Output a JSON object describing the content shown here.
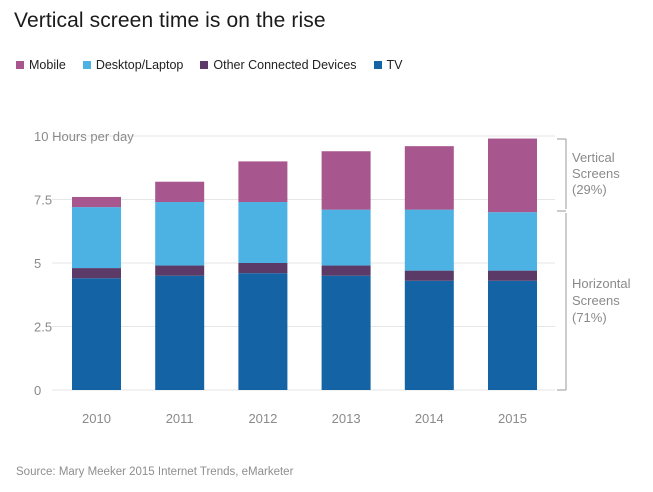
{
  "title": "Vertical screen time is on the rise",
  "source": "Source: Mary Meeker 2015 Internet Trends, eMarketer",
  "legend": [
    {
      "label": "Mobile",
      "color": "#a8578e"
    },
    {
      "label": "Desktop/Laptop",
      "color": "#4bb2e3"
    },
    {
      "label": "Other Connected Devices",
      "color": "#5b3a68"
    },
    {
      "label": "TV",
      "color": "#1464a5"
    }
  ],
  "annotations": {
    "vertical": [
      "Vertical",
      "Screens",
      "(29%)"
    ],
    "horizontal": [
      "Horizontal",
      "Screens",
      "(71%)"
    ]
  },
  "chart_data": {
    "type": "bar",
    "stacked": true,
    "title": "Vertical screen time is on the rise",
    "ylabel": "Hours per day",
    "ylim": [
      0,
      10
    ],
    "yticks": [
      {
        "value": 0,
        "label": "0"
      },
      {
        "value": 2.5,
        "label": "2.5"
      },
      {
        "value": 5,
        "label": "5"
      },
      {
        "value": 7.5,
        "label": "7.5"
      },
      {
        "value": 10,
        "label": "10 Hours per day"
      }
    ],
    "categories": [
      "2010",
      "2011",
      "2012",
      "2013",
      "2014",
      "2015"
    ],
    "series": [
      {
        "name": "TV",
        "color": "#1464a5",
        "values": [
          4.4,
          4.5,
          4.6,
          4.5,
          4.3,
          4.3
        ]
      },
      {
        "name": "Other Connected Devices",
        "color": "#5b3a68",
        "values": [
          0.4,
          0.4,
          0.4,
          0.4,
          0.4,
          0.4
        ]
      },
      {
        "name": "Desktop/Laptop",
        "color": "#4bb2e3",
        "values": [
          2.4,
          2.5,
          2.4,
          2.2,
          2.4,
          2.3
        ]
      },
      {
        "name": "Mobile",
        "color": "#a8578e",
        "values": [
          0.4,
          0.8,
          1.6,
          2.3,
          2.5,
          2.9
        ]
      }
    ],
    "grid": true
  }
}
